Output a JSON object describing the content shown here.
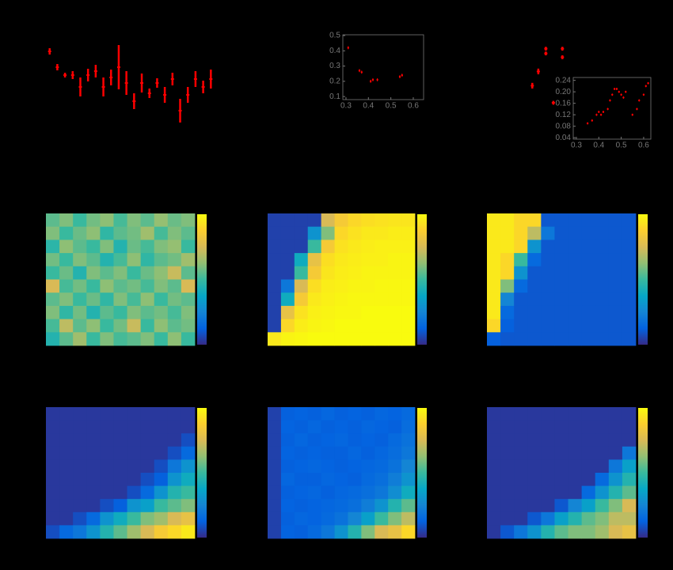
{
  "chart_data": [
    {
      "type": "errorbar",
      "color": "#ff0000",
      "xlim": [
        0,
        23
      ],
      "ylim": [
        0,
        1.2
      ],
      "x": [
        1,
        2,
        3,
        4,
        5,
        6,
        7,
        8,
        9,
        10,
        11,
        12,
        13,
        14,
        15,
        16,
        17,
        18,
        19,
        20,
        21,
        22
      ],
      "values": [
        0.95,
        0.75,
        0.65,
        0.65,
        0.5,
        0.65,
        0.7,
        0.5,
        0.62,
        0.75,
        0.55,
        0.32,
        0.55,
        0.42,
        0.55,
        0.4,
        0.6,
        0.2,
        0.4,
        0.6,
        0.5,
        0.6
      ],
      "errors": [
        0.04,
        0.04,
        0.03,
        0.05,
        0.12,
        0.08,
        0.08,
        0.12,
        0.1,
        0.28,
        0.15,
        0.1,
        0.12,
        0.06,
        0.06,
        0.1,
        0.08,
        0.15,
        0.1,
        0.1,
        0.08,
        0.12
      ]
    },
    {
      "type": "scatter",
      "color": "#ff0000",
      "axis_color": "#777777",
      "xlim": [
        0.286,
        0.646
      ],
      "ylim": [
        0.08,
        0.505
      ],
      "xticks": [
        0.3,
        0.4,
        0.5,
        0.6
      ],
      "yticks": [
        0.1,
        0.2,
        0.3,
        0.4,
        0.5
      ],
      "x": [
        0.31,
        0.36,
        0.37,
        0.41,
        0.42,
        0.44,
        0.54,
        0.55
      ],
      "values": [
        0.42,
        0.27,
        0.26,
        0.2,
        0.21,
        0.21,
        0.23,
        0.24
      ],
      "errors": [
        0.01,
        0.01,
        0.01,
        0.01,
        0.01,
        0.01,
        0.01,
        0.01
      ]
    },
    {
      "type": "errorbar",
      "color": "#ff0000",
      "xlim": [
        0,
        1
      ],
      "ylim": [
        0,
        1
      ],
      "x": [
        0.26,
        0.26,
        0.37,
        0.37,
        0.21,
        0.17,
        0.31
      ],
      "values": [
        0.82,
        0.77,
        0.82,
        0.73,
        0.58,
        0.43,
        0.25
      ],
      "errors": [
        0.02,
        0.02,
        0.02,
        0.02,
        0.03,
        0.03,
        0.02
      ]
    },
    {
      "type": "scatter",
      "color": "#ff0000",
      "axis_color": "#777777",
      "xlim": [
        0.286,
        0.632
      ],
      "ylim": [
        0.035,
        0.25
      ],
      "xticks": [
        0.3,
        0.4,
        0.5,
        0.6
      ],
      "yticks": [
        0.04,
        0.08,
        0.12,
        0.16,
        {
          "value": 0.2,
          "label": "0.20"
        },
        0.24
      ],
      "x": [
        0.35,
        0.37,
        0.39,
        0.4,
        0.41,
        0.42,
        0.44,
        0.45,
        0.46,
        0.47,
        0.48,
        0.49,
        0.5,
        0.51,
        0.52,
        0.55,
        0.57,
        0.58,
        0.6,
        0.61,
        0.62
      ],
      "values": [
        0.09,
        0.1,
        0.12,
        0.13,
        0.12,
        0.13,
        0.14,
        0.17,
        0.19,
        0.21,
        0.21,
        0.2,
        0.19,
        0.18,
        0.2,
        0.12,
        0.14,
        0.17,
        0.19,
        0.22,
        0.23
      ],
      "errors": [
        0.004,
        0.004,
        0.004,
        0.004,
        0.004,
        0.004,
        0.004,
        0.004,
        0.004,
        0.004,
        0.004,
        0.004,
        0.004,
        0.004,
        0.004,
        0.004,
        0.004,
        0.004,
        0.004,
        0.004,
        0.004
      ]
    },
    {
      "type": "heatmap",
      "clim": [
        0,
        1
      ],
      "values": [
        [
          0.55,
          0.6,
          0.5,
          0.58,
          0.62,
          0.52,
          0.6,
          0.55,
          0.63,
          0.57,
          0.6
        ],
        [
          0.6,
          0.5,
          0.57,
          0.62,
          0.48,
          0.55,
          0.58,
          0.65,
          0.52,
          0.6,
          0.55
        ],
        [
          0.47,
          0.62,
          0.55,
          0.5,
          0.6,
          0.45,
          0.57,
          0.52,
          0.6,
          0.63,
          0.5
        ],
        [
          0.58,
          0.5,
          0.6,
          0.55,
          0.45,
          0.52,
          0.62,
          0.48,
          0.55,
          0.58,
          0.65
        ],
        [
          0.5,
          0.57,
          0.45,
          0.6,
          0.55,
          0.6,
          0.5,
          0.57,
          0.62,
          0.72,
          0.55
        ],
        [
          0.75,
          0.52,
          0.58,
          0.5,
          0.62,
          0.55,
          0.58,
          0.52,
          0.6,
          0.55,
          0.75
        ],
        [
          0.55,
          0.6,
          0.5,
          0.57,
          0.48,
          0.6,
          0.52,
          0.62,
          0.5,
          0.58,
          0.55
        ],
        [
          0.6,
          0.48,
          0.58,
          0.45,
          0.55,
          0.5,
          0.6,
          0.55,
          0.58,
          0.52,
          0.6
        ],
        [
          0.52,
          0.7,
          0.55,
          0.62,
          0.5,
          0.58,
          0.72,
          0.5,
          0.62,
          0.55,
          0.58
        ],
        [
          0.45,
          0.55,
          0.65,
          0.5,
          0.6,
          0.52,
          0.55,
          0.6,
          0.5,
          0.62,
          0.5
        ]
      ]
    },
    {
      "type": "heatmap",
      "clim": [
        0,
        1
      ],
      "values": [
        [
          0.05,
          0.05,
          0.05,
          0.05,
          0.75,
          0.85,
          0.9,
          0.92,
          0.93,
          0.94,
          0.94
        ],
        [
          0.05,
          0.05,
          0.05,
          0.3,
          0.6,
          0.9,
          0.93,
          0.95,
          0.95,
          0.96,
          0.96
        ],
        [
          0.05,
          0.05,
          0.05,
          0.5,
          0.85,
          0.93,
          0.95,
          0.96,
          0.97,
          0.97,
          0.97
        ],
        [
          0.05,
          0.05,
          0.4,
          0.8,
          0.92,
          0.95,
          0.96,
          0.97,
          0.97,
          0.98,
          0.98
        ],
        [
          0.05,
          0.05,
          0.5,
          0.85,
          0.94,
          0.96,
          0.97,
          0.98,
          0.98,
          0.98,
          0.98
        ],
        [
          0.05,
          0.2,
          0.75,
          0.92,
          0.96,
          0.97,
          0.98,
          0.98,
          0.99,
          0.99,
          0.99
        ],
        [
          0.05,
          0.4,
          0.85,
          0.95,
          0.97,
          0.98,
          0.99,
          0.99,
          0.99,
          0.99,
          0.99
        ],
        [
          0.05,
          0.8,
          0.93,
          0.97,
          0.98,
          0.99,
          0.99,
          1,
          1,
          1,
          1
        ],
        [
          0.05,
          0.9,
          0.96,
          0.98,
          0.99,
          1,
          1,
          1,
          1,
          1,
          1
        ],
        [
          0.95,
          0.98,
          0.99,
          1,
          1,
          1,
          1,
          1,
          1,
          1,
          1
        ]
      ]
    },
    {
      "type": "heatmap",
      "clim": [
        0,
        1
      ],
      "values": [
        [
          0.95,
          0.95,
          0.9,
          0.9,
          0.1,
          0.1,
          0.1,
          0.1,
          0.1,
          0.1,
          0.1
        ],
        [
          0.95,
          0.95,
          0.9,
          0.7,
          0.2,
          0.1,
          0.1,
          0.1,
          0.1,
          0.1,
          0.1
        ],
        [
          0.95,
          0.95,
          0.9,
          0.3,
          0.1,
          0.1,
          0.1,
          0.1,
          0.1,
          0.1,
          0.1
        ],
        [
          0.95,
          0.9,
          0.5,
          0.15,
          0.1,
          0.1,
          0.1,
          0.1,
          0.1,
          0.1,
          0.1
        ],
        [
          0.95,
          0.9,
          0.3,
          0.1,
          0.1,
          0.1,
          0.1,
          0.1,
          0.1,
          0.1,
          0.1
        ],
        [
          0.95,
          0.6,
          0.15,
          0.1,
          0.1,
          0.1,
          0.1,
          0.1,
          0.1,
          0.1,
          0.1
        ],
        [
          0.95,
          0.25,
          0.1,
          0.1,
          0.1,
          0.1,
          0.1,
          0.1,
          0.1,
          0.1,
          0.1
        ],
        [
          0.95,
          0.15,
          0.1,
          0.1,
          0.1,
          0.1,
          0.1,
          0.1,
          0.1,
          0.1,
          0.1
        ],
        [
          0.9,
          0.12,
          0.1,
          0.1,
          0.1,
          0.1,
          0.1,
          0.1,
          0.1,
          0.1,
          0.1
        ],
        [
          0.12,
          0.1,
          0.1,
          0.1,
          0.1,
          0.1,
          0.1,
          0.1,
          0.1,
          0.1,
          0.1
        ]
      ]
    },
    {
      "type": "heatmap",
      "clim": [
        0,
        1
      ],
      "values": [
        [
          0.03,
          0.03,
          0.03,
          0.03,
          0.03,
          0.03,
          0.03,
          0.03,
          0.03,
          0.03,
          0.03
        ],
        [
          0.03,
          0.03,
          0.03,
          0.03,
          0.03,
          0.03,
          0.03,
          0.03,
          0.03,
          0.03,
          0.03
        ],
        [
          0.03,
          0.03,
          0.03,
          0.03,
          0.03,
          0.03,
          0.03,
          0.03,
          0.03,
          0.03,
          0.08
        ],
        [
          0.03,
          0.03,
          0.03,
          0.03,
          0.03,
          0.03,
          0.03,
          0.03,
          0.03,
          0.08,
          0.15
        ],
        [
          0.03,
          0.03,
          0.03,
          0.03,
          0.03,
          0.03,
          0.03,
          0.03,
          0.08,
          0.2,
          0.3
        ],
        [
          0.03,
          0.03,
          0.03,
          0.03,
          0.03,
          0.03,
          0.03,
          0.08,
          0.12,
          0.3,
          0.4
        ],
        [
          0.03,
          0.03,
          0.03,
          0.03,
          0.03,
          0.03,
          0.08,
          0.15,
          0.3,
          0.45,
          0.5
        ],
        [
          0.03,
          0.03,
          0.03,
          0.03,
          0.08,
          0.12,
          0.3,
          0.35,
          0.5,
          0.55,
          0.6
        ],
        [
          0.03,
          0.03,
          0.08,
          0.15,
          0.3,
          0.4,
          0.5,
          0.6,
          0.65,
          0.75,
          0.8
        ],
        [
          0.08,
          0.15,
          0.2,
          0.3,
          0.45,
          0.55,
          0.65,
          0.75,
          0.85,
          0.9,
          0.95
        ]
      ]
    },
    {
      "type": "heatmap",
      "clim": [
        0,
        1
      ],
      "values": [
        [
          0.05,
          0.12,
          0.13,
          0.12,
          0.14,
          0.12,
          0.13,
          0.12,
          0.14,
          0.13,
          0.15
        ],
        [
          0.05,
          0.13,
          0.12,
          0.14,
          0.12,
          0.13,
          0.12,
          0.14,
          0.13,
          0.12,
          0.16
        ],
        [
          0.05,
          0.12,
          0.14,
          0.12,
          0.13,
          0.14,
          0.12,
          0.13,
          0.12,
          0.15,
          0.18
        ],
        [
          0.05,
          0.13,
          0.12,
          0.13,
          0.12,
          0.12,
          0.14,
          0.12,
          0.14,
          0.16,
          0.2
        ],
        [
          0.05,
          0.12,
          0.13,
          0.14,
          0.13,
          0.12,
          0.13,
          0.14,
          0.15,
          0.18,
          0.25
        ],
        [
          0.05,
          0.14,
          0.12,
          0.12,
          0.14,
          0.13,
          0.12,
          0.15,
          0.17,
          0.22,
          0.3
        ],
        [
          0.05,
          0.12,
          0.13,
          0.14,
          0.12,
          0.14,
          0.15,
          0.17,
          0.2,
          0.28,
          0.4
        ],
        [
          0.05,
          0.13,
          0.12,
          0.13,
          0.14,
          0.15,
          0.17,
          0.22,
          0.3,
          0.45,
          0.55
        ],
        [
          0.05,
          0.12,
          0.14,
          0.13,
          0.15,
          0.18,
          0.25,
          0.35,
          0.5,
          0.6,
          0.7
        ],
        [
          0.05,
          0.13,
          0.12,
          0.15,
          0.2,
          0.3,
          0.45,
          0.6,
          0.75,
          0.8,
          0.9
        ]
      ]
    },
    {
      "type": "heatmap",
      "clim": [
        0,
        1
      ],
      "values": [
        [
          0.03,
          0.03,
          0.03,
          0.03,
          0.03,
          0.03,
          0.03,
          0.03,
          0.03,
          0.03,
          0.03
        ],
        [
          0.03,
          0.03,
          0.03,
          0.03,
          0.03,
          0.03,
          0.03,
          0.03,
          0.03,
          0.03,
          0.03
        ],
        [
          0.03,
          0.03,
          0.03,
          0.03,
          0.03,
          0.03,
          0.03,
          0.03,
          0.03,
          0.03,
          0.03
        ],
        [
          0.03,
          0.03,
          0.03,
          0.03,
          0.03,
          0.03,
          0.03,
          0.03,
          0.03,
          0.03,
          0.2
        ],
        [
          0.03,
          0.03,
          0.03,
          0.03,
          0.03,
          0.03,
          0.03,
          0.03,
          0.03,
          0.2,
          0.35
        ],
        [
          0.03,
          0.03,
          0.03,
          0.03,
          0.03,
          0.03,
          0.03,
          0.03,
          0.15,
          0.3,
          0.45
        ],
        [
          0.03,
          0.03,
          0.03,
          0.03,
          0.03,
          0.03,
          0.03,
          0.15,
          0.3,
          0.45,
          0.55
        ],
        [
          0.03,
          0.03,
          0.03,
          0.03,
          0.03,
          0.1,
          0.25,
          0.35,
          0.5,
          0.6,
          0.75
        ],
        [
          0.03,
          0.03,
          0.03,
          0.1,
          0.2,
          0.35,
          0.45,
          0.55,
          0.6,
          0.7,
          0.7
        ],
        [
          0.03,
          0.1,
          0.2,
          0.3,
          0.45,
          0.55,
          0.6,
          0.6,
          0.65,
          0.75,
          0.8
        ]
      ]
    }
  ]
}
